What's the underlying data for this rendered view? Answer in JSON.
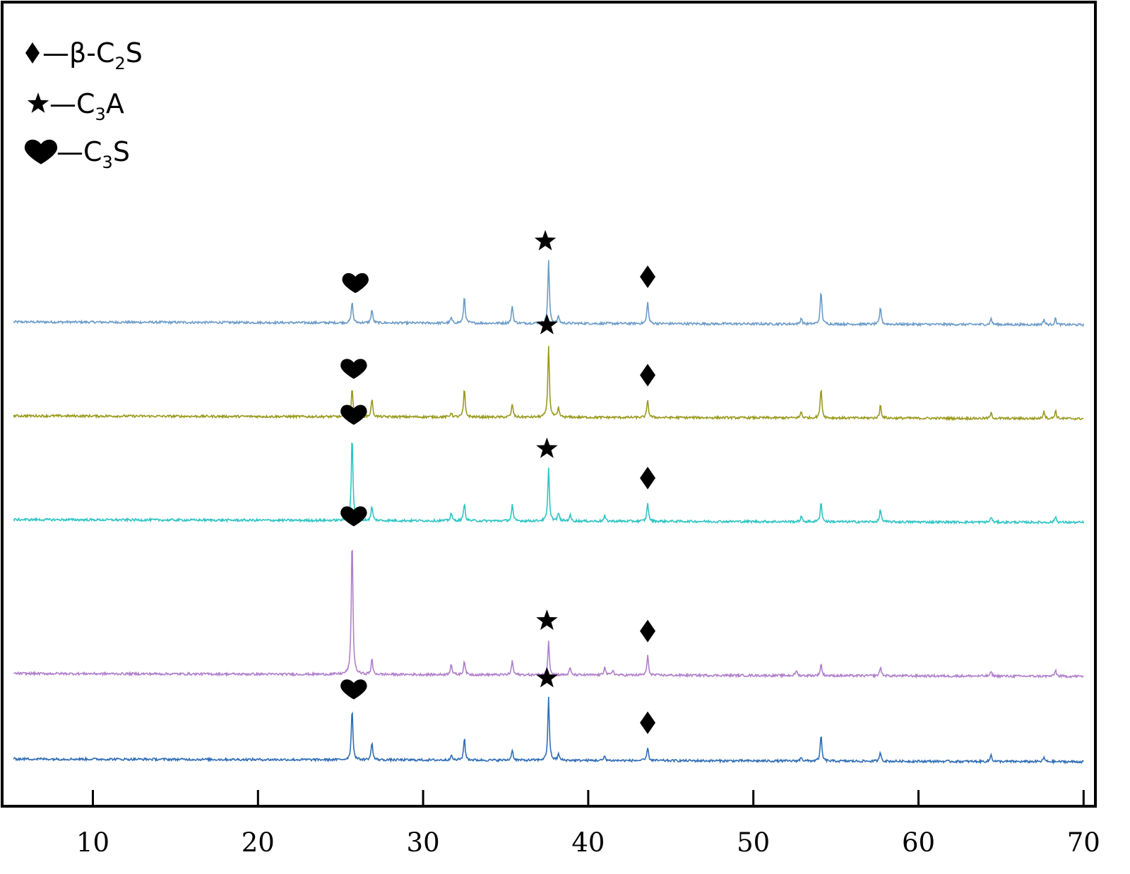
{
  "chart_data": {
    "type": "line",
    "xlabel": "",
    "ylabel": "",
    "xlim": [
      4.5,
      70.5
    ],
    "x_ticks": [
      "10",
      "20",
      "30",
      "40",
      "50",
      "60",
      "70"
    ],
    "legend": [
      {
        "symbol": "diamond",
        "dash": "—",
        "prefix": "β-C",
        "sub": "2",
        "suffix": "S"
      },
      {
        "symbol": "star",
        "dash": "—",
        "prefix": "C",
        "sub": "3",
        "suffix": "A"
      },
      {
        "symbol": "heart",
        "dash": "—",
        "prefix": "C",
        "sub": "3",
        "suffix": "S"
      }
    ],
    "series": [
      {
        "color": "#6b9bc8",
        "peaks": [
          [
            25.7,
            24
          ],
          [
            26.9,
            15
          ],
          [
            31.7,
            6
          ],
          [
            32.5,
            30
          ],
          [
            35.4,
            20
          ],
          [
            37.6,
            69
          ],
          [
            38.2,
            8
          ],
          [
            43.6,
            25
          ],
          [
            52.9,
            7
          ],
          [
            54.1,
            37
          ],
          [
            57.7,
            19
          ],
          [
            64.4,
            7
          ],
          [
            67.6,
            6
          ],
          [
            68.3,
            7
          ]
        ],
        "markers": [
          {
            "x": 25.9,
            "symbol": "heart"
          },
          {
            "x": 37.4,
            "symbol": "star"
          },
          {
            "x": 43.6,
            "symbol": "diamond"
          }
        ]
      },
      {
        "color": "#9a9a1e",
        "peaks": [
          [
            25.7,
            33
          ],
          [
            26.9,
            20
          ],
          [
            31.7,
            5
          ],
          [
            32.5,
            31
          ],
          [
            35.4,
            15
          ],
          [
            37.6,
            80
          ],
          [
            38.2,
            10
          ],
          [
            43.6,
            20
          ],
          [
            52.9,
            7
          ],
          [
            54.1,
            34
          ],
          [
            57.7,
            15
          ],
          [
            64.4,
            6
          ],
          [
            67.6,
            9
          ],
          [
            68.3,
            9
          ]
        ],
        "markers": [
          {
            "x": 25.8,
            "symbol": "heart"
          },
          {
            "x": 37.5,
            "symbol": "star"
          },
          {
            "x": 43.6,
            "symbol": "diamond"
          }
        ]
      },
      {
        "color": "#2ec4c4",
        "peaks": [
          [
            25.7,
            97
          ],
          [
            26.9,
            16
          ],
          [
            31.7,
            9
          ],
          [
            32.5,
            20
          ],
          [
            35.4,
            18
          ],
          [
            37.6,
            58
          ],
          [
            38.2,
            9
          ],
          [
            38.9,
            7
          ],
          [
            41.0,
            6
          ],
          [
            43.6,
            21
          ],
          [
            52.9,
            6
          ],
          [
            54.1,
            22
          ],
          [
            57.7,
            14
          ],
          [
            64.4,
            6
          ],
          [
            68.3,
            7
          ]
        ],
        "markers": [
          {
            "x": 25.8,
            "symbol": "heart"
          },
          {
            "x": 37.5,
            "symbol": "star"
          },
          {
            "x": 43.6,
            "symbol": "diamond"
          }
        ]
      },
      {
        "color": "#b07fcc",
        "peaks": [
          [
            25.7,
            155
          ],
          [
            26.9,
            17
          ],
          [
            31.7,
            13
          ],
          [
            32.5,
            16
          ],
          [
            35.4,
            16
          ],
          [
            37.6,
            38
          ],
          [
            38.9,
            8
          ],
          [
            41.0,
            10
          ],
          [
            41.5,
            6
          ],
          [
            43.6,
            22
          ],
          [
            52.6,
            6
          ],
          [
            54.1,
            13
          ],
          [
            57.7,
            10
          ],
          [
            64.4,
            5
          ],
          [
            68.3,
            7
          ]
        ],
        "markers": [
          {
            "x": 25.8,
            "symbol": "heart"
          },
          {
            "x": 37.5,
            "symbol": "star"
          },
          {
            "x": 43.6,
            "symbol": "diamond"
          }
        ]
      },
      {
        "color": "#2f6db5",
        "peaks": [
          [
            25.7,
            58
          ],
          [
            26.9,
            20
          ],
          [
            31.7,
            6
          ],
          [
            32.5,
            25
          ],
          [
            35.4,
            12
          ],
          [
            37.6,
            69
          ],
          [
            38.2,
            7
          ],
          [
            41.0,
            5
          ],
          [
            43.6,
            15
          ],
          [
            52.9,
            5
          ],
          [
            54.1,
            29
          ],
          [
            57.7,
            10
          ],
          [
            64.4,
            8
          ],
          [
            67.6,
            5
          ]
        ],
        "markers": [
          {
            "x": 25.8,
            "symbol": "heart"
          },
          {
            "x": 37.5,
            "symbol": "star"
          },
          {
            "x": 43.6,
            "symbol": "diamond"
          }
        ]
      }
    ]
  }
}
